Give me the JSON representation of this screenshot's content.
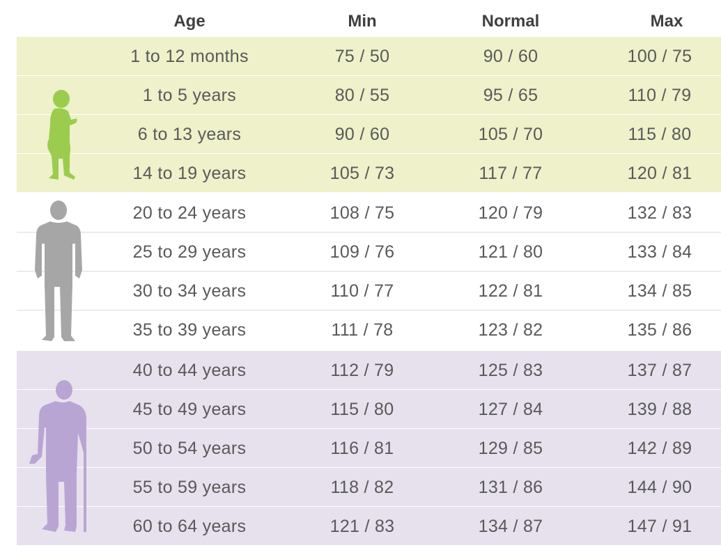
{
  "header": {
    "age": "Age",
    "min": "Min",
    "normal": "Normal",
    "max": "Max"
  },
  "rows": [
    {
      "age": "1 to 12 months",
      "min": "75 / 50",
      "normal": "90 / 60",
      "max": "100 / 75"
    },
    {
      "age": "1 to 5 years",
      "min": "80 / 55",
      "normal": "95 / 65",
      "max": "110 / 79"
    },
    {
      "age": "6 to 13 years",
      "min": "90 / 60",
      "normal": "105 / 70",
      "max": "115 / 80"
    },
    {
      "age": "14 to 19 years",
      "min": "105 / 73",
      "normal": "117 / 77",
      "max": "120 / 81"
    },
    {
      "age": "20 to 24 years",
      "min": "108 / 75",
      "normal": "120 / 79",
      "max": "132 / 83"
    },
    {
      "age": "25 to 29 years",
      "min": "109 / 76",
      "normal": "121 / 80",
      "max": "133 / 84"
    },
    {
      "age": "30 to 34 years",
      "min": "110 / 77",
      "normal": "122 / 81",
      "max": "134 / 85"
    },
    {
      "age": "35 to 39 years",
      "min": "111 / 78",
      "normal": "123 / 82",
      "max": "135 / 86"
    },
    {
      "age": "40 to 44 years",
      "min": "112 / 79",
      "normal": "125 / 83",
      "max": "137 / 87"
    },
    {
      "age": "45 to 49 years",
      "min": "115 / 80",
      "normal": "127 / 84",
      "max": "139 / 88"
    },
    {
      "age": "50 to 54 years",
      "min": "116 / 81",
      "normal": "129 / 85",
      "max": "142 / 89"
    },
    {
      "age": "55 to 59 years",
      "min": "118 / 82",
      "normal": "131 / 86",
      "max": "144 / 90"
    },
    {
      "age": "60 to 64 years",
      "min": "121 / 83",
      "normal": "134 / 87",
      "max": "147 / 91"
    }
  ],
  "groups": {
    "child": {
      "color": "#eef1c9",
      "icon": "child-figure-icon",
      "icon_color": "#9ccc4e"
    },
    "adult": {
      "color": "#ffffff",
      "icon": "adult-figure-icon",
      "icon_color": "#a6a6a6"
    },
    "elder": {
      "color": "#e7e1ee",
      "icon": "elder-with-cane-icon",
      "icon_color": "#b9a5d3"
    }
  }
}
